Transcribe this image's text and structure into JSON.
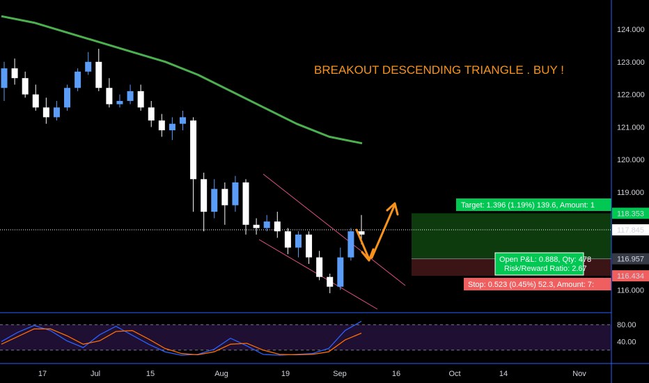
{
  "chart_data": [
    {
      "type": "candlestick",
      "title": "BREAKOUT DESCENDING TRIANGLE . BUY !",
      "ylim": [
        115.5,
        124.8
      ],
      "y_ticks": [
        "124.000",
        "123.000",
        "122.000",
        "121.000",
        "120.000",
        "119.000",
        "116.000"
      ],
      "x_ticks": [
        "17",
        "Jul",
        "15",
        "Aug",
        "19",
        "Sep",
        "16",
        "Oct",
        "14",
        "Nov"
      ],
      "price_labels": {
        "target": "118.353",
        "current": "117.845",
        "entry": "116.957",
        "stop": "116.434"
      },
      "candles": [
        {
          "o": 122.2,
          "h": 123.0,
          "c": 122.8,
          "l": 121.8
        },
        {
          "o": 122.8,
          "h": 123.1,
          "c": 122.5,
          "l": 122.3
        },
        {
          "o": 122.5,
          "h": 122.7,
          "c": 122.0,
          "l": 121.9
        },
        {
          "o": 122.0,
          "h": 122.3,
          "c": 121.6,
          "l": 121.5
        },
        {
          "o": 121.6,
          "h": 121.9,
          "c": 121.3,
          "l": 121.1
        },
        {
          "o": 121.3,
          "h": 121.8,
          "c": 121.6,
          "l": 121.2
        },
        {
          "o": 121.6,
          "h": 122.3,
          "c": 122.2,
          "l": 121.5
        },
        {
          "o": 122.2,
          "h": 122.8,
          "c": 122.7,
          "l": 122.1
        },
        {
          "o": 122.7,
          "h": 123.3,
          "c": 123.0,
          "l": 122.6
        },
        {
          "o": 123.0,
          "h": 123.4,
          "c": 122.2,
          "l": 122.1
        },
        {
          "o": 122.2,
          "h": 122.5,
          "c": 121.7,
          "l": 121.6
        },
        {
          "o": 121.7,
          "h": 122.0,
          "c": 121.8,
          "l": 121.6
        },
        {
          "o": 121.8,
          "h": 122.3,
          "c": 122.1,
          "l": 121.7
        },
        {
          "o": 122.1,
          "h": 122.3,
          "c": 121.6,
          "l": 121.5
        },
        {
          "o": 121.6,
          "h": 121.8,
          "c": 121.2,
          "l": 121.0
        },
        {
          "o": 121.2,
          "h": 121.4,
          "c": 120.9,
          "l": 120.7
        },
        {
          "o": 120.9,
          "h": 121.3,
          "c": 121.1,
          "l": 120.6
        },
        {
          "o": 121.1,
          "h": 121.5,
          "c": 121.3,
          "l": 120.9
        },
        {
          "o": 121.2,
          "h": 121.3,
          "c": 119.4,
          "l": 118.4
        },
        {
          "o": 119.4,
          "h": 119.6,
          "c": 118.4,
          "l": 117.8
        },
        {
          "o": 118.4,
          "h": 119.4,
          "c": 119.1,
          "l": 118.2
        },
        {
          "o": 119.1,
          "h": 119.3,
          "c": 118.6,
          "l": 118.0
        },
        {
          "o": 118.6,
          "h": 119.5,
          "c": 119.3,
          "l": 118.4
        },
        {
          "o": 119.3,
          "h": 119.4,
          "c": 118.0,
          "l": 117.7
        },
        {
          "o": 118.0,
          "h": 118.2,
          "c": 117.9,
          "l": 117.7
        },
        {
          "o": 117.9,
          "h": 118.3,
          "c": 118.1,
          "l": 117.8
        },
        {
          "o": 118.1,
          "h": 118.4,
          "c": 117.8,
          "l": 117.6
        },
        {
          "o": 117.8,
          "h": 117.9,
          "c": 117.3,
          "l": 117.1
        },
        {
          "o": 117.3,
          "h": 117.8,
          "c": 117.7,
          "l": 117.0
        },
        {
          "o": 117.7,
          "h": 117.8,
          "c": 117.0,
          "l": 116.8
        },
        {
          "o": 117.0,
          "h": 117.2,
          "c": 116.4,
          "l": 116.3
        },
        {
          "o": 116.4,
          "h": 116.5,
          "c": 116.1,
          "l": 115.9
        },
        {
          "o": 116.1,
          "h": 117.3,
          "c": 117.0,
          "l": 116.0
        },
        {
          "o": 117.0,
          "h": 117.9,
          "c": 117.8,
          "l": 116.9
        },
        {
          "o": 117.8,
          "h": 118.3,
          "c": 117.7,
          "l": 117.4
        }
      ],
      "ma_values": [
        124.4,
        124.2,
        123.9,
        123.6,
        123.3,
        123.0,
        122.6,
        122.1,
        121.6,
        121.1,
        120.7,
        120.5
      ],
      "target_box": "Target: 1.396 (1.19%) 139.6, Amount: 1",
      "pnl_box": [
        "Open P&L: 0.888, Qty: 478",
        "Risk/Reward Ratio: 2.67"
      ],
      "stop_box": "Stop: 0.523 (0.45%) 52.3, Amount: 7:",
      "colors": {
        "bull": "#5b9cf6",
        "bear": "#ffffff",
        "ma": "#4caf50",
        "annotation": "#f7931a",
        "triangle": "#e0507a",
        "target_zone": "#0d3b0d",
        "stop_zone": "#3b1515"
      }
    },
    {
      "type": "line",
      "indicator": "stochastic-rsi",
      "ylim": [
        0,
        100
      ],
      "y_ticks": [
        "80.00",
        "40.00"
      ],
      "series": [
        {
          "values": [
            40,
            62,
            78,
            66,
            42,
            26,
            56,
            76,
            55,
            34,
            16,
            8,
            10,
            22,
            48,
            30,
            10,
            8,
            10,
            12,
            24,
            66,
            88
          ]
        },
        {
          "values": [
            34,
            52,
            70,
            70,
            54,
            34,
            42,
            64,
            66,
            46,
            24,
            12,
            9,
            16,
            34,
            36,
            20,
            10,
            9,
            10,
            16,
            44,
            60
          ]
        }
      ]
    }
  ]
}
